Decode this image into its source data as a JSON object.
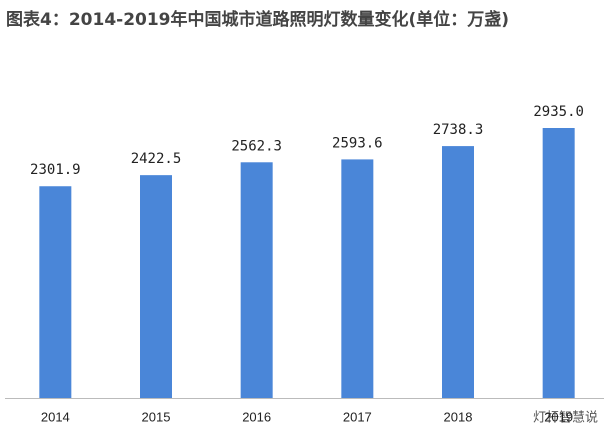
{
  "chart_data": {
    "type": "bar",
    "title": "图表4：2014-2019年中国城市道路照明灯数量变化(单位：万盏)",
    "categories": [
      "2014",
      "2015",
      "2016",
      "2017",
      "2018",
      "2019"
    ],
    "values": [
      2301.9,
      2422.5,
      2562.3,
      2593.6,
      2738.3,
      2935.0
    ],
    "value_labels": [
      "2301.9",
      "2422.5",
      "2562.3",
      "2593.6",
      "2738.3",
      "2935.0"
    ],
    "color": "#4a86d8",
    "source": "灯杆智慧说"
  }
}
